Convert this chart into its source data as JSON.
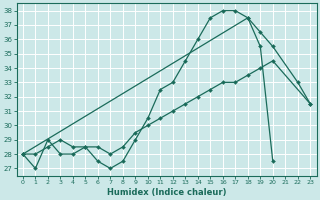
{
  "xlabel": "Humidex (Indice chaleur)",
  "bg_color": "#cce8e8",
  "line_color": "#1a6b5a",
  "xlim": [
    -0.5,
    23.5
  ],
  "ylim": [
    26.5,
    38.5
  ],
  "xticks": [
    0,
    1,
    2,
    3,
    4,
    5,
    6,
    7,
    8,
    9,
    10,
    11,
    12,
    13,
    14,
    15,
    16,
    17,
    18,
    19,
    20,
    21,
    22,
    23
  ],
  "yticks": [
    27,
    28,
    29,
    30,
    31,
    32,
    33,
    34,
    35,
    36,
    37,
    38
  ],
  "series1_x": [
    0,
    1,
    2,
    3,
    4,
    5,
    6,
    7,
    8,
    9,
    10,
    11,
    12,
    13,
    14,
    15,
    16,
    17,
    18,
    19,
    20
  ],
  "series1_y": [
    28,
    27,
    29,
    28,
    28,
    28.5,
    27.5,
    27,
    27.5,
    29,
    30.5,
    32.5,
    33,
    34.5,
    36,
    37.5,
    38,
    38,
    37.5,
    35.5,
    27.5
  ],
  "series2_x": [
    0,
    18,
    19,
    20,
    22,
    23
  ],
  "series2_y": [
    28,
    37.5,
    36.5,
    35.5,
    33,
    31.5
  ],
  "series3_x": [
    0,
    1,
    2,
    3,
    4,
    5,
    6,
    7,
    8,
    9,
    10,
    11,
    12,
    13,
    14,
    15,
    16,
    17,
    18,
    19,
    20,
    23
  ],
  "series3_y": [
    28,
    28,
    28.5,
    29,
    28.5,
    28.5,
    28.5,
    28,
    28.5,
    29.5,
    30,
    30.5,
    31,
    31.5,
    32,
    32.5,
    33,
    33,
    33.5,
    34,
    34.5,
    31.5
  ]
}
